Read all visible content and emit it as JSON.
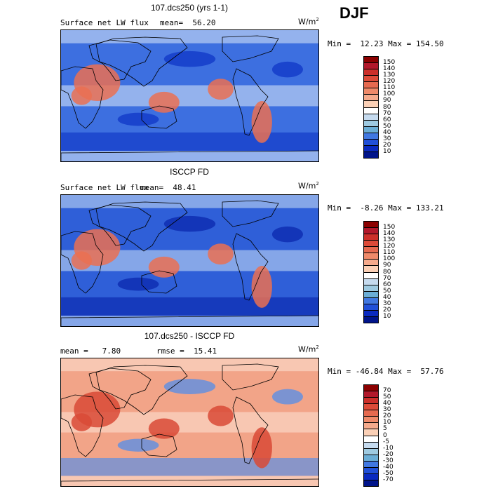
{
  "season": "DJF",
  "panels": [
    {
      "title": "107.dcs250 (yrs 1-1)",
      "subtitle": "Surface net LW flux",
      "stat": "mean=  56.20",
      "units": "W/m",
      "units_sup": "2",
      "minmax": "Min =  12.23 Max = 154.50",
      "colorbar_labels": [
        "150",
        "140",
        "130",
        "120",
        "110",
        "100",
        "90",
        "80",
        "70",
        "60",
        "50",
        "40",
        "30",
        "20",
        "10"
      ],
      "colorbar_colors": [
        "#8b0000",
        "#b2182b",
        "#cc2f2a",
        "#dd4b39",
        "#e66a50",
        "#ef8a6a",
        "#f5aa8c",
        "#fbd0b6",
        "#ffffff",
        "#c6dbef",
        "#9ecae1",
        "#6baed6",
        "#4178e1",
        "#2150d8",
        "#0a2ac0",
        "#00148a"
      ],
      "map_bg": "#3d6fe0",
      "map_cold": "#123ac8",
      "map_warm": "#ea7052",
      "map_pale": "#b9cff2"
    },
    {
      "title": "ISCCP FD",
      "subtitle": "Surface net LW flux",
      "stat": "mean=  48.41",
      "units": "W/m",
      "units_sup": "2",
      "minmax": "Min =  -8.26 Max = 133.21",
      "colorbar_labels": [
        "150",
        "140",
        "130",
        "120",
        "110",
        "100",
        "90",
        "80",
        "70",
        "60",
        "50",
        "40",
        "30",
        "20",
        "10"
      ],
      "colorbar_colors": [
        "#8b0000",
        "#b2182b",
        "#cc2f2a",
        "#dd4b39",
        "#e66a50",
        "#ef8a6a",
        "#f5aa8c",
        "#fbd0b6",
        "#ffffff",
        "#c6dbef",
        "#9ecae1",
        "#6baed6",
        "#4178e1",
        "#2150d8",
        "#0a2ac0",
        "#00148a"
      ],
      "map_bg": "#2f5fd8",
      "map_cold": "#0c2bb0",
      "map_warm": "#ea7052",
      "map_pale": "#aac4ef"
    },
    {
      "title": "107.dcs250 - ISCCP FD",
      "subtitle": "mean =   7.80",
      "stat": "rmse =  15.41",
      "units": "W/m",
      "units_sup": "2",
      "minmax": "Min = -46.84 Max =  57.76",
      "colorbar_labels": [
        "70",
        "50",
        "40",
        "30",
        "20",
        "10",
        "5",
        "0",
        "-5",
        "-10",
        "-20",
        "-30",
        "-40",
        "-50",
        "-70"
      ],
      "colorbar_colors": [
        "#8b0000",
        "#b2182b",
        "#cc2f2a",
        "#dd4b39",
        "#e66a50",
        "#ef8a6a",
        "#f5aa8c",
        "#fbd0b6",
        "#ffffff",
        "#c6dbef",
        "#9ecae1",
        "#6baed6",
        "#4178e1",
        "#2150d8",
        "#0a2ac0",
        "#00148a"
      ],
      "map_bg": "#f2a488",
      "map_cold": "#5d8ee4",
      "map_warm": "#d94a36",
      "map_pale": "#fbd6c4"
    }
  ]
}
